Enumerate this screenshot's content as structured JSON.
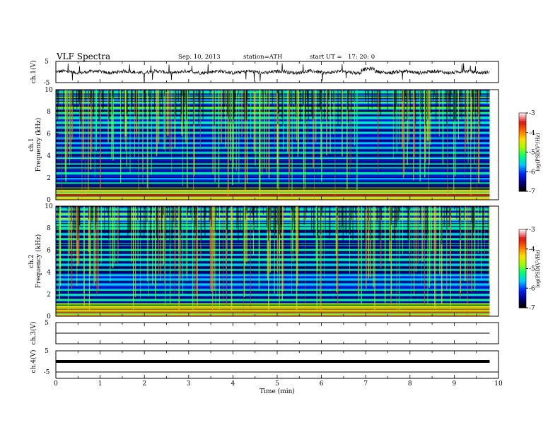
{
  "header": {
    "title": "VLF Spectra",
    "date": "Sep. 10, 2013",
    "station": "station=ATH",
    "start": "start UT =",
    "start_time": "17: 20: 0"
  },
  "chart_data": [
    {
      "type": "line",
      "panel": "ch1-waveform",
      "ylabel": "ch.1(V)",
      "ylim": [
        -5,
        5
      ],
      "y_ticks": [
        "5",
        "-5"
      ],
      "xlim": [
        0,
        10
      ],
      "x_end": 9.8,
      "baseline": 0.0,
      "series_color": "#000000"
    },
    {
      "type": "heatmap",
      "panel": "ch1-spectrogram",
      "ylabel_top": "ch.1",
      "ylabel": "Frequency (kHz)",
      "ylim": [
        0,
        10
      ],
      "y_ticks": [
        "0",
        "2",
        "4",
        "6",
        "8",
        "10"
      ],
      "xlim": [
        0,
        10
      ],
      "x_end": 9.8,
      "colorbar": {
        "label": "log(PSD(V²/Hz)",
        "range": [
          -7,
          -3
        ],
        "ticks": [
          "-3",
          "-4",
          "-5",
          "-6",
          "-7"
        ]
      }
    },
    {
      "type": "heatmap",
      "panel": "ch2-spectrogram",
      "ylabel_top": "ch.2",
      "ylabel": "Frequency (kHz)",
      "ylim": [
        0,
        10
      ],
      "y_ticks": [
        "0",
        "2",
        "4",
        "6",
        "8",
        "10"
      ],
      "xlim": [
        0,
        10
      ],
      "x_end": 9.8,
      "colorbar": {
        "label": "log(PSD(V²/Hz)",
        "range": [
          -7,
          -3
        ],
        "ticks": [
          "-3",
          "-4",
          "-5",
          "-6",
          "-7"
        ]
      }
    },
    {
      "type": "line",
      "panel": "ch3-waveform",
      "ylabel": "ch.3(V)",
      "ylim": [
        -5,
        5
      ],
      "y_ticks": [
        "5"
      ],
      "xlim": [
        0,
        10
      ],
      "x_end": 9.8,
      "baseline": 0.0
    },
    {
      "type": "line",
      "panel": "ch4-waveform",
      "ylabel": "ch.4(V)",
      "ylim": [
        -5,
        5
      ],
      "y_ticks": [
        "5",
        "-5"
      ],
      "xlim": [
        0,
        10
      ],
      "x_end": 9.8,
      "baseline": 0.0
    }
  ],
  "x_axis": {
    "label": "Time (min)",
    "ticks": [
      "0",
      "1",
      "2",
      "3",
      "4",
      "5",
      "6",
      "7",
      "8",
      "9",
      "10"
    ]
  }
}
